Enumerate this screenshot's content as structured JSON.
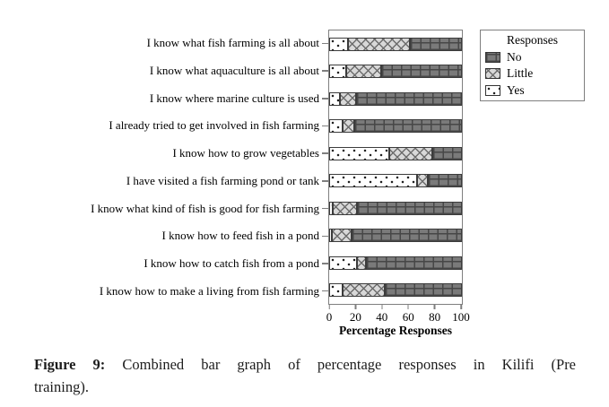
{
  "chart_data": {
    "type": "bar",
    "orientation": "horizontal",
    "stacked": true,
    "xlabel": "Percentage Responses",
    "xlim": [
      0,
      100
    ],
    "xticks": [
      0,
      20,
      40,
      60,
      80,
      100
    ],
    "grid": false,
    "legend": {
      "title": "Responses",
      "position": "top-right",
      "entries": [
        "No",
        "Little",
        "Yes"
      ]
    },
    "categories": [
      "I know what fish farming is all about",
      "I know what aquaculture is all about",
      "I know where marine culture is used",
      "I already tried to get involved in fish farming",
      "I know how to grow vegetables",
      "I have visited a fish farming pond or tank",
      "I know what kind of fish is good for fish farming",
      "I know how to feed fish in a pond",
      "I know how to catch fish from a pond",
      "I know how to make a living from fish farming"
    ],
    "series": [
      {
        "name": "Yes",
        "pattern": "white-dotted",
        "values": [
          14,
          13,
          8,
          10,
          45,
          66,
          3,
          2,
          21,
          10
        ]
      },
      {
        "name": "Little",
        "pattern": "light-gray-crosshatch",
        "values": [
          47,
          26,
          12,
          9,
          33,
          8,
          18,
          15,
          7,
          32
        ]
      },
      {
        "name": "No",
        "pattern": "dark-gray-grid",
        "values": [
          39,
          61,
          80,
          81,
          22,
          26,
          79,
          83,
          72,
          58
        ]
      }
    ]
  },
  "caption": {
    "label": "Figure 9:",
    "line1": "Combined bar graph of percentage responses in Kilifi (Pre",
    "line2": "training)."
  },
  "colors": {
    "background": "#ffffff",
    "frame": "#7f7f7f",
    "no_fill": "#7a7a7a",
    "no_line": "#474747",
    "little_fill": "#d8d8d8",
    "little_line": "#6d6d6d",
    "yes_fill": "#ffffff",
    "yes_dot": "#1a1a1a",
    "text": "#000000"
  }
}
